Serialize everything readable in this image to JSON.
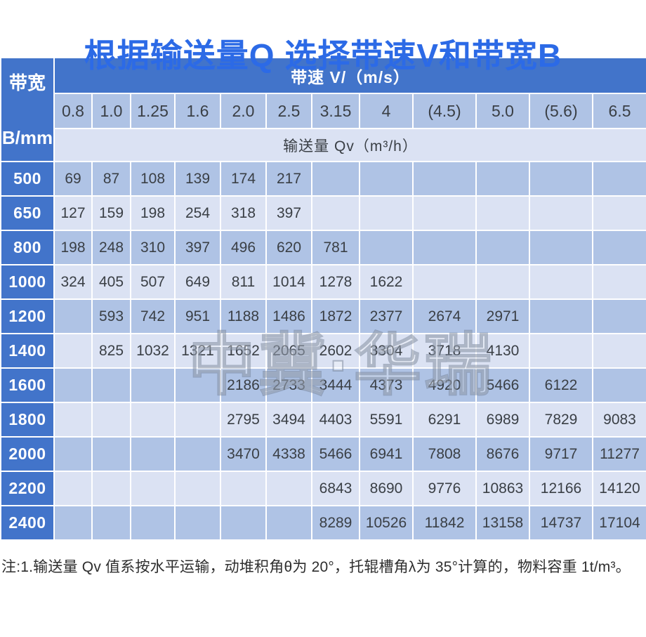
{
  "title": "根据输送量Q 选择带速V和带宽B",
  "table": {
    "corner_header": {
      "line1": "带宽",
      "line2": "B/mm"
    },
    "speed_header": "带速 V/（m/s）",
    "qv_header": "输送量 Qv（m³/h）",
    "speeds": [
      "0.8",
      "1.0",
      "1.25",
      "1.6",
      "2.0",
      "2.5",
      "3.15",
      "4",
      "(4.5)",
      "5.0",
      "(5.6)",
      "6.5"
    ],
    "rows": [
      {
        "width": "500",
        "values": [
          "69",
          "87",
          "108",
          "139",
          "174",
          "217",
          "",
          "",
          "",
          "",
          "",
          ""
        ]
      },
      {
        "width": "650",
        "values": [
          "127",
          "159",
          "198",
          "254",
          "318",
          "397",
          "",
          "",
          "",
          "",
          "",
          ""
        ]
      },
      {
        "width": "800",
        "values": [
          "198",
          "248",
          "310",
          "397",
          "496",
          "620",
          "781",
          "",
          "",
          "",
          "",
          ""
        ]
      },
      {
        "width": "1000",
        "values": [
          "324",
          "405",
          "507",
          "649",
          "811",
          "1014",
          "1278",
          "1622",
          "",
          "",
          "",
          ""
        ]
      },
      {
        "width": "1200",
        "values": [
          "",
          "593",
          "742",
          "951",
          "1188",
          "1486",
          "1872",
          "2377",
          "2674",
          "2971",
          "",
          ""
        ]
      },
      {
        "width": "1400",
        "values": [
          "",
          "825",
          "1032",
          "1321",
          "1652",
          "2065",
          "2602",
          "3304",
          "3718",
          "4130",
          "",
          ""
        ]
      },
      {
        "width": "1600",
        "values": [
          "",
          "",
          "",
          "",
          "2186",
          "2733",
          "3444",
          "4373",
          "4920",
          "5466",
          "6122",
          ""
        ]
      },
      {
        "width": "1800",
        "values": [
          "",
          "",
          "",
          "",
          "2795",
          "3494",
          "4403",
          "5591",
          "6291",
          "6989",
          "7829",
          "9083"
        ]
      },
      {
        "width": "2000",
        "values": [
          "",
          "",
          "",
          "",
          "3470",
          "4338",
          "5466",
          "6941",
          "7808",
          "8676",
          "9717",
          "11277"
        ]
      },
      {
        "width": "2200",
        "values": [
          "",
          "",
          "",
          "",
          "",
          "",
          "6843",
          "8690",
          "9776",
          "10863",
          "12166",
          "14120"
        ]
      },
      {
        "width": "2400",
        "values": [
          "",
          "",
          "",
          "",
          "",
          "",
          "8289",
          "10526",
          "11842",
          "13158",
          "14737",
          "17104"
        ]
      }
    ]
  },
  "watermark": "中冀·华瑞",
  "note": "注:1.输送量 Qv 值系按水平运输，动堆积角θ为 20°，托辊槽角λ为 35°计算的，物料容重 1t/m³。",
  "colors": {
    "title_blue": "#2C6AE6",
    "header_blue": "#4274CA",
    "band_dark": "#AFC3E5",
    "band_light": "#DBE2F3",
    "cell_text": "#3A3F45",
    "note_text": "#2E2E2E",
    "grid_white": "#FFFFFF"
  }
}
